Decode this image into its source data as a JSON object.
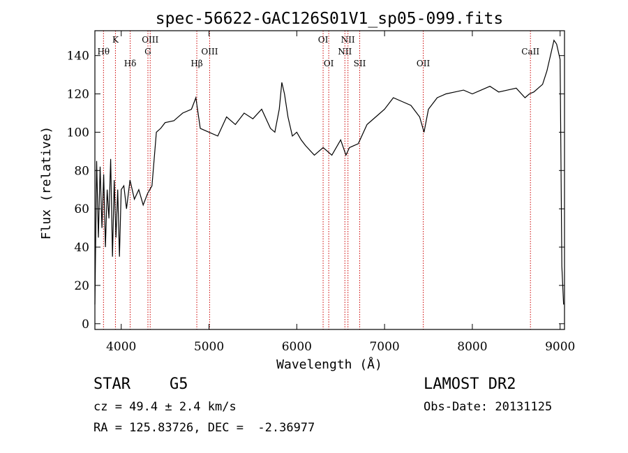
{
  "chart_data": {
    "type": "line",
    "title": "spec-56622-GAC126S01V1_sp05-099.fits",
    "xlabel": "Wavelength (Å)",
    "ylabel": "Flux (relative)",
    "xlim": [
      3700,
      9050
    ],
    "ylim": [
      -3,
      153
    ],
    "xticks": [
      4000,
      5000,
      6000,
      7000,
      8000,
      9000
    ],
    "yticks": [
      0,
      20,
      40,
      60,
      80,
      100,
      120,
      140
    ],
    "grid": false,
    "series": [
      {
        "x": [
          3700,
          3720,
          3740,
          3760,
          3780,
          3800,
          3820,
          3840,
          3860,
          3880,
          3900,
          3920,
          3940,
          3960,
          3980,
          4000,
          4030,
          4060,
          4100,
          4150,
          4200,
          4250,
          4300,
          4350,
          4400,
          4450,
          4500,
          4600,
          4700,
          4800,
          4850,
          4900,
          5000,
          5100,
          5200,
          5300,
          5400,
          5500,
          5600,
          5700,
          5750,
          5800,
          5830,
          5860,
          5900,
          5950,
          6000,
          6050,
          6100,
          6200,
          6300,
          6400,
          6500,
          6560,
          6600,
          6700,
          6800,
          6900,
          7000,
          7100,
          7200,
          7300,
          7400,
          7450,
          7500,
          7600,
          7700,
          7800,
          7900,
          8000,
          8100,
          8200,
          8300,
          8400,
          8500,
          8600,
          8650,
          8700,
          8750,
          8800,
          8850,
          8900,
          8930,
          8960,
          9000,
          9020,
          9040
        ],
        "values": [
          10,
          85,
          45,
          82,
          50,
          78,
          40,
          70,
          55,
          86,
          35,
          75,
          45,
          70,
          35,
          70,
          72,
          60,
          75,
          65,
          70,
          62,
          68,
          72,
          100,
          102,
          105,
          106,
          110,
          112,
          118,
          102,
          100,
          98,
          108,
          104,
          110,
          107,
          112,
          102,
          100,
          112,
          126,
          120,
          108,
          98,
          100,
          96,
          93,
          88,
          92,
          88,
          96,
          88,
          92,
          94,
          104,
          108,
          112,
          118,
          116,
          114,
          108,
          100,
          112,
          118,
          120,
          121,
          122,
          120,
          122,
          124,
          121,
          122,
          123,
          118,
          120,
          121,
          123,
          125,
          132,
          142,
          148,
          146,
          138,
          30,
          10
        ]
      }
    ],
    "lines": [
      {
        "name": "Hθ",
        "x": 3798,
        "row": 2
      },
      {
        "name": "K",
        "x": 3934,
        "row": 1
      },
      {
        "name": "Hδ",
        "x": 4102,
        "row": 3
      },
      {
        "name": "OIII",
        "x": 4330,
        "row": 1
      },
      {
        "name": "G",
        "x": 4304,
        "row": 2
      },
      {
        "name": "Hβ",
        "x": 4861,
        "row": 3
      },
      {
        "name": "OIII",
        "x": 5007,
        "row": 2
      },
      {
        "name": "OI",
        "x": 6300,
        "row": 1
      },
      {
        "name": "OI",
        "x": 6364,
        "row": 3
      },
      {
        "name": "NII",
        "x": 6583,
        "row": 1
      },
      {
        "name": "NII",
        "x": 6548,
        "row": 2
      },
      {
        "name": "SII",
        "x": 6717,
        "row": 3
      },
      {
        "name": "OII",
        "x": 7441,
        "row": 3
      },
      {
        "name": "CaII",
        "x": 8662,
        "row": 2
      }
    ]
  },
  "info": {
    "class": "STAR",
    "subclass": "G5",
    "survey": "LAMOST DR2",
    "cz": "cz = 49.4 ± 2.4 km/s",
    "obs_date": "Obs-Date: 20131125",
    "radec": "RA = 125.83726, DEC =  -2.36977"
  },
  "colors": {
    "spectrum": "#000000",
    "line_marker": "#cc0000"
  }
}
